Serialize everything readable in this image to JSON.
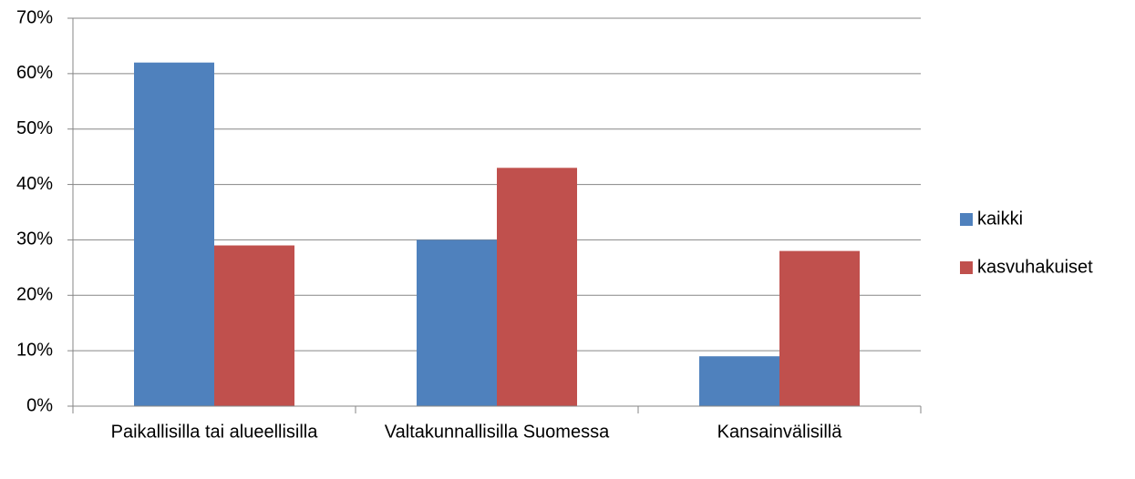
{
  "chart_data": {
    "type": "bar",
    "categories": [
      "Paikallisilla tai alueellisilla",
      "Valtakunnallisilla Suomessa",
      "Kansainvälisillä"
    ],
    "series": [
      {
        "name": "kaikki",
        "color": "#4f81bd",
        "values": [
          62,
          30,
          9
        ]
      },
      {
        "name": "kasvuhakuiset",
        "color": "#c0504d",
        "values": [
          29,
          43,
          28
        ]
      }
    ],
    "ylim": [
      0,
      70
    ],
    "yticks": [
      {
        "value": 0,
        "label": "0%"
      },
      {
        "value": 10,
        "label": "10%"
      },
      {
        "value": 20,
        "label": "20%"
      },
      {
        "value": 30,
        "label": "30%"
      },
      {
        "value": 40,
        "label": "40%"
      },
      {
        "value": 50,
        "label": "50%"
      },
      {
        "value": 60,
        "label": "60%"
      },
      {
        "value": 70,
        "label": "70%"
      }
    ],
    "grid": true,
    "legend": "right"
  }
}
